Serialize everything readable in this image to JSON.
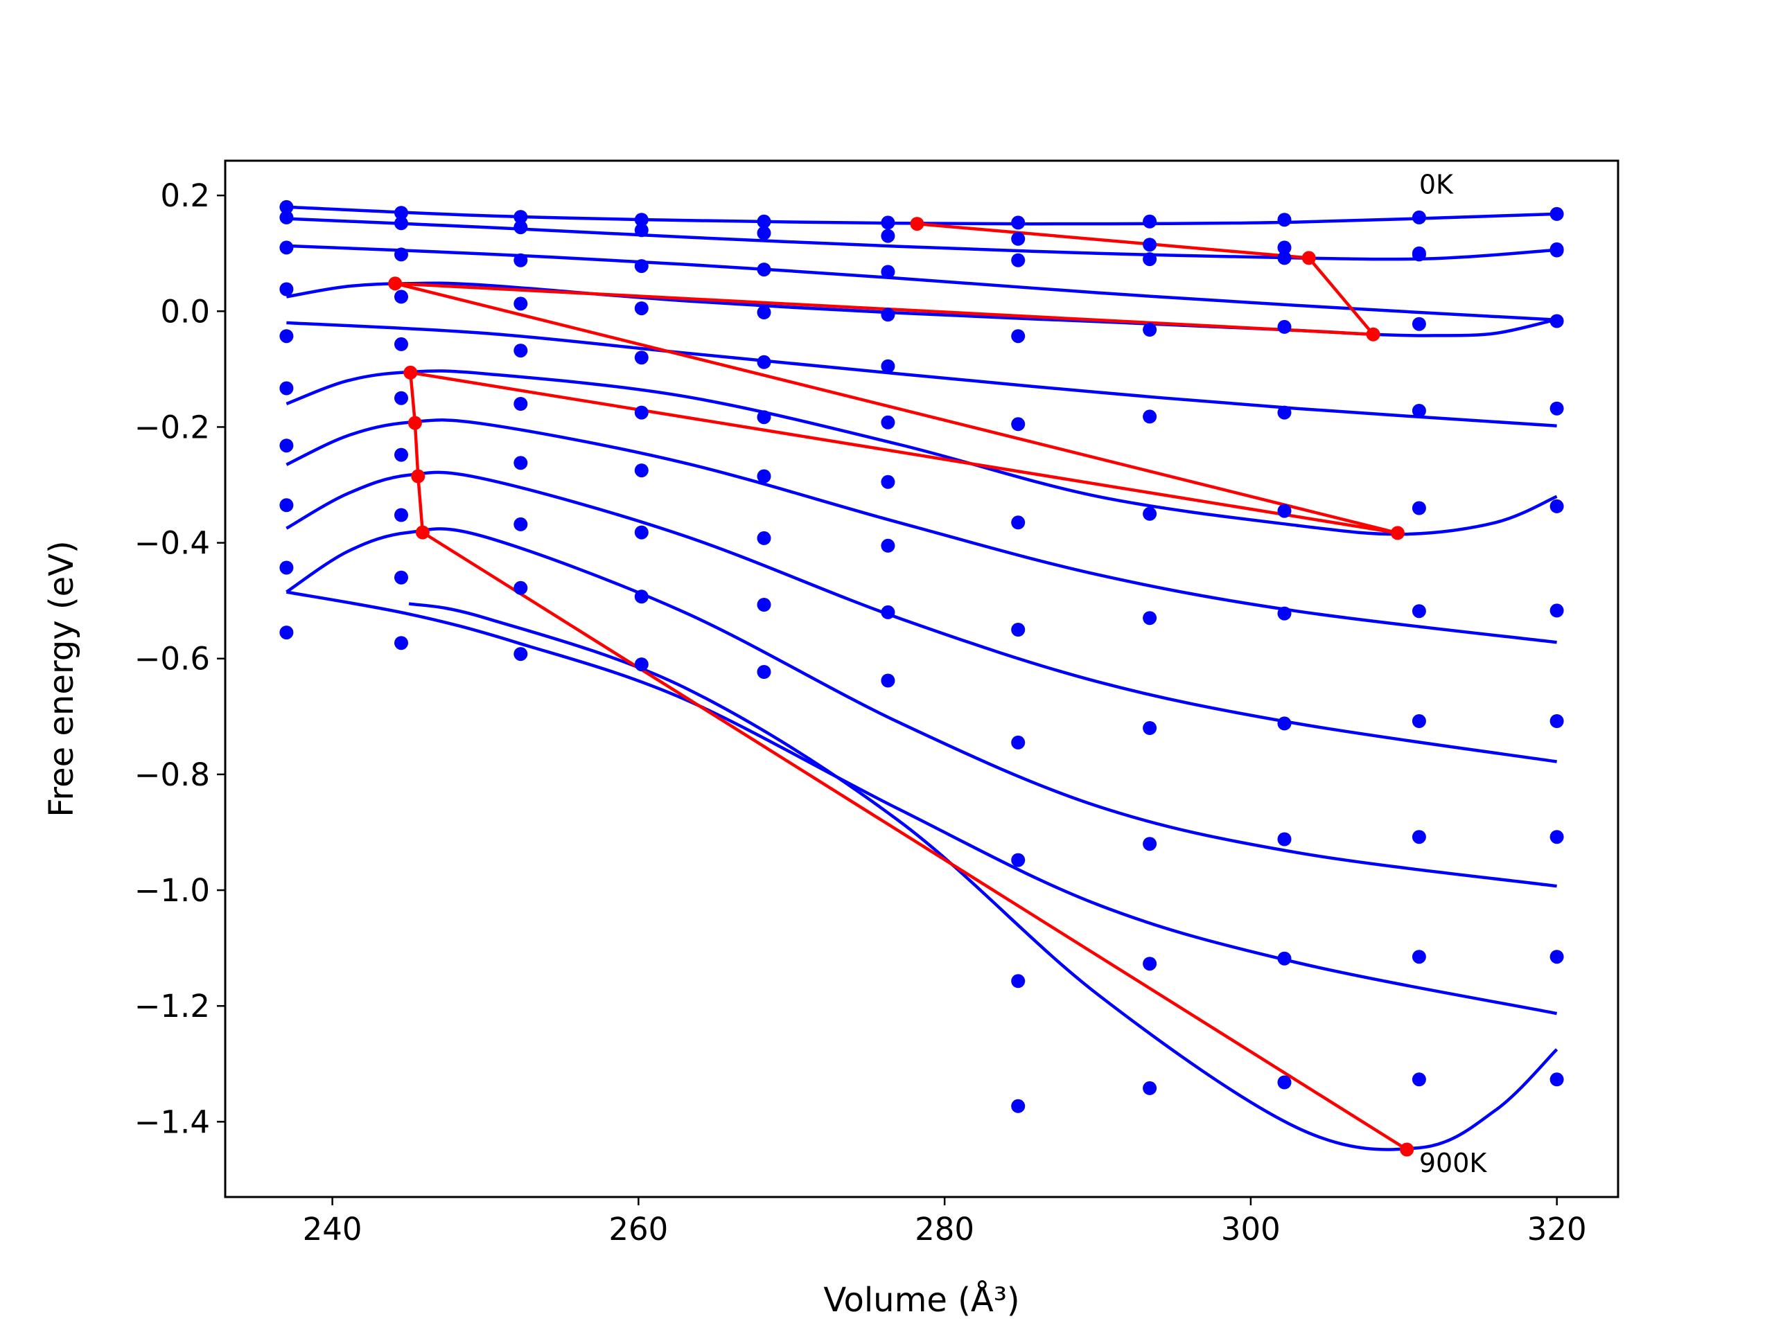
{
  "chart_data": {
    "type": "line",
    "xlabel": "Volume (Å³)",
    "ylabel": "Free energy (eV)",
    "xlim": [
      233,
      324
    ],
    "ylim": [
      -1.53,
      0.26
    ],
    "xticks": [
      240,
      260,
      280,
      300,
      320
    ],
    "yticks": [
      0.2,
      0.0,
      -0.2,
      -0.4,
      -0.6,
      -0.8,
      -1.0,
      -1.2,
      -1.4
    ],
    "ytick_labels": [
      "0.2",
      "0.0",
      "−0.2",
      "−0.4",
      "−0.6",
      "−0.8",
      "−1.0",
      "−1.2",
      "−1.4"
    ],
    "annotations": [
      {
        "text": "0K",
        "x": 311,
        "y": 0.22
      },
      {
        "text": "900K",
        "x": 311,
        "y": -1.47
      }
    ],
    "colors": {
      "points": "#0000ff",
      "fits": "#0000ff",
      "minima": "#ff0000"
    },
    "grid": false,
    "point_x": [
      237.0,
      244.5,
      252.3,
      260.2,
      268.2,
      276.3,
      284.8,
      293.4,
      302.2,
      311.0,
      320.0
    ],
    "point_series": [
      [
        0.18,
        0.17,
        0.163,
        0.158,
        0.155,
        0.153,
        0.153,
        0.155,
        0.158,
        0.162,
        0.168
      ],
      [
        0.162,
        0.152,
        0.145,
        0.14,
        0.135,
        0.13,
        0.125,
        0.115,
        0.11,
        0.1,
        0.107
      ],
      [
        0.11,
        0.098,
        0.088,
        0.078,
        0.072,
        0.068,
        0.088,
        0.09,
        0.092,
        0.098,
        0.105
      ],
      [
        0.038,
        0.025,
        0.013,
        0.005,
        -0.002,
        -0.006,
        -0.043,
        -0.032,
        -0.027,
        -0.022,
        -0.017
      ],
      [
        -0.043,
        -0.057,
        -0.068,
        -0.08,
        -0.088,
        -0.095,
        -0.195,
        -0.182,
        -0.175,
        -0.172,
        -0.168
      ],
      [
        -0.133,
        -0.15,
        -0.16,
        -0.175,
        -0.183,
        -0.192,
        -0.365,
        -0.35,
        -0.345,
        -0.34,
        -0.337
      ],
      [
        -0.232,
        -0.248,
        -0.262,
        -0.275,
        -0.285,
        -0.295,
        -0.55,
        -0.53,
        -0.522,
        -0.518,
        -0.517
      ],
      [
        -0.335,
        -0.352,
        -0.368,
        -0.382,
        -0.392,
        -0.405,
        -0.745,
        -0.72,
        -0.712,
        -0.708,
        -0.708
      ],
      [
        -0.443,
        -0.46,
        -0.478,
        -0.493,
        -0.507,
        -0.52,
        -0.948,
        -0.92,
        -0.912,
        -0.908,
        -0.908
      ],
      [
        -0.555,
        -0.573,
        -0.592,
        -0.61,
        -0.623,
        -0.638,
        -1.157,
        -1.127,
        -1.118,
        -1.115,
        -1.115
      ],
      [
        null,
        null,
        null,
        null,
        null,
        null,
        -1.373,
        -1.342,
        -1.332,
        -1.327,
        -1.327
      ]
    ],
    "series": [
      {
        "x": [
          237,
          250,
          263,
          277,
          290,
          303,
          320
        ],
        "y": [
          0.18,
          0.165,
          0.157,
          0.152,
          0.151,
          0.154,
          0.168
        ]
      },
      {
        "x": [
          237,
          250,
          263,
          277,
          290,
          303,
          312,
          320
        ],
        "y": [
          0.16,
          0.145,
          0.128,
          0.112,
          0.1,
          0.092,
          0.091,
          0.106
        ]
      },
      {
        "x": [
          237,
          250,
          263,
          277,
          290,
          303,
          320
        ],
        "y": [
          0.113,
          0.099,
          0.081,
          0.057,
          0.032,
          0.01,
          -0.015
        ]
      },
      {
        "x": [
          237,
          241,
          245,
          250,
          263,
          277,
          290,
          303,
          308,
          312,
          316,
          320
        ],
        "y": [
          0.025,
          0.043,
          0.048,
          0.045,
          0.018,
          -0.003,
          -0.018,
          -0.033,
          -0.04,
          -0.042,
          -0.038,
          -0.014
        ]
      },
      {
        "x": [
          237,
          250,
          263,
          277,
          290,
          303,
          320
        ],
        "y": [
          -0.02,
          -0.038,
          -0.072,
          -0.108,
          -0.14,
          -0.168,
          -0.198
        ]
      },
      {
        "x": [
          237,
          241,
          245,
          250,
          263,
          277,
          290,
          303,
          310,
          316,
          320
        ],
        "y": [
          -0.16,
          -0.12,
          -0.105,
          -0.108,
          -0.147,
          -0.23,
          -0.32,
          -0.37,
          -0.385,
          -0.365,
          -0.32
        ]
      },
      {
        "x": [
          237,
          241,
          245,
          250,
          263,
          277,
          290,
          303,
          320
        ],
        "y": [
          -0.265,
          -0.215,
          -0.192,
          -0.195,
          -0.262,
          -0.365,
          -0.455,
          -0.518,
          -0.572
        ]
      },
      {
        "x": [
          237,
          241,
          245,
          250,
          263,
          277,
          290,
          303,
          320
        ],
        "y": [
          -0.375,
          -0.315,
          -0.283,
          -0.29,
          -0.388,
          -0.53,
          -0.64,
          -0.712,
          -0.778
        ]
      },
      {
        "x": [
          237,
          241,
          245,
          250,
          263,
          277,
          290,
          303,
          320
        ],
        "y": [
          -0.485,
          -0.415,
          -0.382,
          -0.39,
          -0.52,
          -0.71,
          -0.855,
          -0.935,
          -0.993
        ]
      },
      {
        "x": [
          237,
          245,
          252,
          263,
          277,
          290,
          303,
          320
        ],
        "y": [
          -0.485,
          -0.523,
          -0.572,
          -0.67,
          -0.86,
          -1.025,
          -1.125,
          -1.213
        ]
      },
      {
        "x": [
          245,
          250,
          263,
          277,
          290,
          303,
          311,
          316,
          320
        ],
        "y": [
          -0.505,
          -0.53,
          -0.65,
          -0.88,
          -1.18,
          -1.41,
          -1.445,
          -1.38,
          -1.275
        ]
      }
    ],
    "minima_path": {
      "x": [
        278.2,
        303.8,
        308.0,
        244.1,
        309.6,
        245.1,
        245.4,
        245.6,
        245.9,
        310.2
      ],
      "y": [
        0.151,
        0.092,
        -0.04,
        0.048,
        -0.383,
        -0.106,
        -0.193,
        -0.285,
        -0.382,
        -1.448
      ]
    }
  }
}
